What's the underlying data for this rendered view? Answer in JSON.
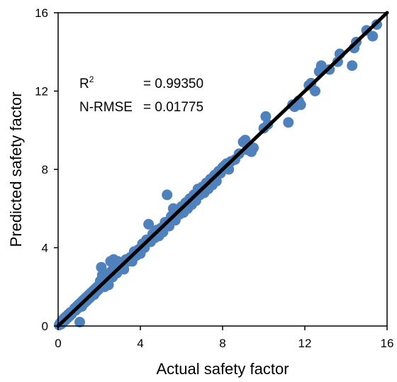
{
  "chart_data": {
    "type": "scatter",
    "title": "",
    "xlabel": "Actual safety factor",
    "ylabel": "Predicted safety factor",
    "xlim": [
      0,
      16
    ],
    "ylim": [
      0,
      16
    ],
    "x_ticks": [
      0,
      4,
      8,
      12,
      16
    ],
    "y_ticks": [
      0,
      4,
      8,
      12,
      16
    ],
    "grid": false,
    "legend": "none",
    "annotations": {
      "r2_label": "R",
      "r2_sup": "2",
      "r2_value": "= 0.99350",
      "nrmse_label": "N-RMSE",
      "nrmse_value": "= 0.01775"
    },
    "marker_color": "#4f81bd",
    "line_color": "#000000",
    "reference_line": {
      "x": [
        0,
        16
      ],
      "y": [
        0,
        16
      ]
    },
    "points": [
      [
        0.05,
        0.05
      ],
      [
        0.1,
        0.15
      ],
      [
        0.15,
        0.1
      ],
      [
        0.2,
        0.3
      ],
      [
        0.25,
        0.2
      ],
      [
        0.3,
        0.4
      ],
      [
        0.35,
        0.3
      ],
      [
        0.4,
        0.5
      ],
      [
        0.45,
        0.4
      ],
      [
        0.5,
        0.6
      ],
      [
        0.55,
        0.5
      ],
      [
        0.6,
        0.7
      ],
      [
        0.65,
        0.6
      ],
      [
        0.7,
        0.75
      ],
      [
        0.75,
        0.8
      ],
      [
        0.8,
        0.9
      ],
      [
        0.85,
        0.8
      ],
      [
        0.9,
        1.0
      ],
      [
        0.95,
        0.9
      ],
      [
        1.0,
        1.1
      ],
      [
        1.0,
        0.95
      ],
      [
        1.05,
        0.2
      ],
      [
        1.1,
        1.2
      ],
      [
        1.15,
        1.0
      ],
      [
        1.2,
        1.3
      ],
      [
        1.25,
        1.15
      ],
      [
        1.3,
        1.4
      ],
      [
        1.35,
        1.25
      ],
      [
        1.4,
        1.5
      ],
      [
        1.45,
        1.35
      ],
      [
        1.5,
        1.6
      ],
      [
        1.55,
        1.45
      ],
      [
        1.6,
        1.7
      ],
      [
        1.65,
        1.55
      ],
      [
        1.7,
        1.8
      ],
      [
        1.75,
        1.6
      ],
      [
        1.8,
        1.9
      ],
      [
        1.85,
        1.75
      ],
      [
        1.9,
        2.0
      ],
      [
        1.95,
        1.85
      ],
      [
        2.0,
        2.1
      ],
      [
        2.05,
        2.3
      ],
      [
        2.1,
        3.0
      ],
      [
        2.15,
        2.6
      ],
      [
        2.2,
        2.2
      ],
      [
        2.25,
        2.0
      ],
      [
        2.3,
        2.5
      ],
      [
        2.35,
        2.3
      ],
      [
        2.4,
        2.4
      ],
      [
        2.45,
        2.1
      ],
      [
        2.5,
        2.7
      ],
      [
        2.55,
        3.3
      ],
      [
        2.6,
        2.8
      ],
      [
        2.65,
        2.5
      ],
      [
        2.7,
        3.4
      ],
      [
        2.75,
        2.9
      ],
      [
        2.8,
        3.0
      ],
      [
        2.85,
        2.7
      ],
      [
        2.9,
        3.3
      ],
      [
        2.95,
        3.1
      ],
      [
        3.0,
        3.0
      ],
      [
        3.1,
        3.2
      ],
      [
        3.2,
        2.9
      ],
      [
        3.3,
        3.4
      ],
      [
        3.4,
        3.3
      ],
      [
        3.5,
        3.5
      ],
      [
        3.6,
        3.3
      ],
      [
        3.7,
        3.8
      ],
      [
        3.8,
        3.6
      ],
      [
        3.9,
        3.9
      ],
      [
        4.0,
        3.7
      ],
      [
        4.1,
        4.2
      ],
      [
        4.2,
        4.0
      ],
      [
        4.3,
        4.4
      ],
      [
        4.4,
        5.2
      ],
      [
        4.5,
        4.3
      ],
      [
        4.6,
        4.7
      ],
      [
        4.7,
        4.5
      ],
      [
        4.8,
        4.9
      ],
      [
        4.9,
        4.6
      ],
      [
        5.0,
        5.0
      ],
      [
        5.1,
        4.8
      ],
      [
        5.2,
        5.3
      ],
      [
        5.3,
        6.7
      ],
      [
        5.4,
        5.1
      ],
      [
        5.5,
        5.6
      ],
      [
        5.6,
        6.0
      ],
      [
        5.7,
        5.4
      ],
      [
        5.8,
        5.9
      ],
      [
        5.9,
        5.7
      ],
      [
        6.0,
        6.1
      ],
      [
        6.1,
        5.8
      ],
      [
        6.2,
        6.3
      ],
      [
        6.3,
        6.0
      ],
      [
        6.4,
        6.5
      ],
      [
        6.5,
        6.2
      ],
      [
        6.6,
        6.7
      ],
      [
        6.7,
        6.4
      ],
      [
        6.8,
        7.0
      ],
      [
        6.9,
        6.7
      ],
      [
        7.0,
        7.1
      ],
      [
        7.1,
        6.8
      ],
      [
        7.2,
        7.3
      ],
      [
        7.3,
        7.0
      ],
      [
        7.4,
        7.5
      ],
      [
        7.5,
        7.2
      ],
      [
        7.6,
        7.7
      ],
      [
        7.7,
        7.4
      ],
      [
        7.8,
        7.9
      ],
      [
        7.9,
        7.8
      ],
      [
        8.0,
        8.1
      ],
      [
        8.1,
        8.2
      ],
      [
        8.2,
        8.3
      ],
      [
        8.3,
        8.0
      ],
      [
        8.4,
        8.4
      ],
      [
        8.6,
        8.5
      ],
      [
        8.8,
        8.8
      ],
      [
        9.0,
        9.4
      ],
      [
        9.1,
        9.5
      ],
      [
        9.2,
        9.0
      ],
      [
        9.4,
        8.9
      ],
      [
        9.5,
        9.1
      ],
      [
        10.0,
        10.1
      ],
      [
        10.1,
        10.7
      ],
      [
        10.2,
        10.3
      ],
      [
        11.2,
        10.4
      ],
      [
        11.4,
        11.3
      ],
      [
        11.5,
        11.2
      ],
      [
        11.7,
        11.5
      ],
      [
        11.8,
        11.3
      ],
      [
        12.2,
        12.3
      ],
      [
        12.3,
        12.4
      ],
      [
        12.5,
        12.0
      ],
      [
        12.7,
        13.0
      ],
      [
        12.8,
        13.3
      ],
      [
        13.2,
        13.1
      ],
      [
        13.6,
        13.5
      ],
      [
        13.7,
        13.9
      ],
      [
        14.3,
        13.3
      ],
      [
        14.4,
        14.2
      ],
      [
        14.5,
        14.5
      ],
      [
        15.0,
        15.1
      ],
      [
        15.3,
        14.8
      ],
      [
        15.5,
        15.4
      ]
    ]
  }
}
